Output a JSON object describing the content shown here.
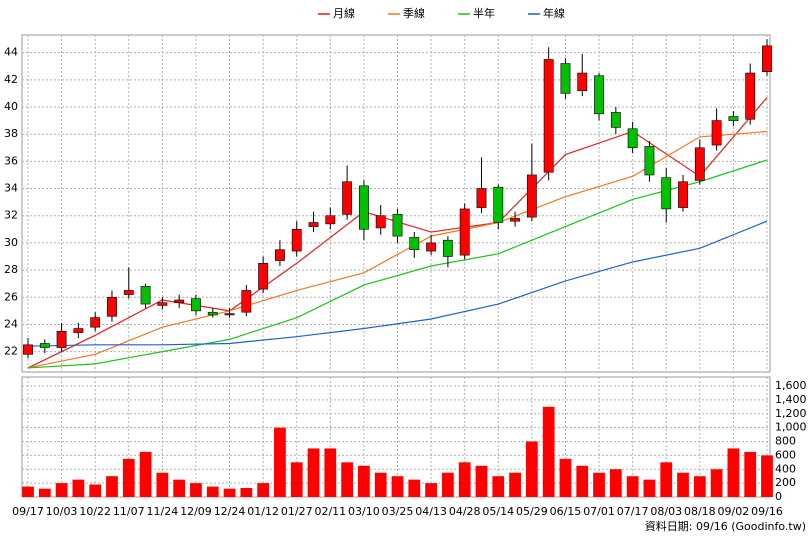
{
  "chart_data": [
    {
      "type": "candlestick",
      "categories": [
        "09/17",
        null,
        "10/03",
        null,
        "10/22",
        null,
        "11/07",
        null,
        "11/24",
        null,
        "12/09",
        null,
        "12/24",
        null,
        "01/12",
        null,
        "01/27",
        null,
        "02/11",
        null,
        "03/10",
        null,
        "03/25",
        null,
        "04/13",
        null,
        "04/28",
        null,
        "05/14",
        null,
        "05/29",
        null,
        "06/15",
        null,
        "07/01",
        null,
        "07/17",
        null,
        "08/03",
        null,
        "08/18",
        null,
        "09/02",
        null,
        "09/16"
      ],
      "open": [
        21.8,
        22.6,
        22.3,
        23.4,
        23.8,
        24.6,
        26.2,
        26.8,
        25.4,
        25.6,
        25.9,
        24.9,
        24.7,
        24.9,
        26.6,
        28.7,
        29.4,
        31.2,
        31.4,
        32.1,
        34.2,
        31.1,
        32.1,
        30.4,
        29.4,
        30.2,
        29.1,
        32.6,
        34.1,
        31.6,
        31.9,
        35.2,
        43.2,
        41.2,
        42.3,
        39.6,
        38.4,
        37.1,
        34.8,
        32.6,
        34.6,
        37.2,
        39.3,
        39.1,
        42.6
      ],
      "high": [
        23.0,
        22.9,
        24.1,
        24.1,
        24.9,
        26.5,
        28.2,
        27.0,
        26.0,
        26.2,
        26.2,
        25.2,
        25.2,
        26.9,
        29.0,
        30.2,
        31.6,
        32.3,
        32.6,
        35.7,
        34.6,
        32.8,
        32.5,
        30.8,
        30.6,
        30.5,
        32.9,
        36.3,
        34.3,
        32.3,
        37.3,
        44.4,
        43.6,
        43.9,
        42.5,
        40.0,
        38.9,
        37.5,
        35.5,
        35.0,
        37.6,
        39.9,
        39.7,
        43.2,
        45.0
      ],
      "low": [
        21.5,
        21.9,
        22.0,
        23.0,
        23.5,
        24.2,
        25.9,
        25.2,
        25.1,
        25.2,
        24.7,
        24.5,
        24.5,
        24.6,
        26.3,
        28.3,
        29.0,
        30.8,
        31.0,
        31.7,
        30.2,
        30.6,
        30.0,
        28.9,
        29.1,
        28.2,
        28.8,
        32.2,
        31.0,
        31.2,
        31.6,
        34.6,
        40.6,
        40.8,
        39.0,
        38.0,
        36.6,
        34.5,
        31.5,
        32.3,
        34.3,
        36.8,
        38.6,
        38.7,
        42.3
      ],
      "close": [
        22.5,
        22.3,
        23.5,
        23.7,
        24.5,
        26.0,
        26.5,
        25.5,
        25.6,
        25.8,
        25.0,
        24.7,
        24.8,
        26.5,
        28.5,
        29.5,
        31.0,
        31.5,
        32.0,
        34.5,
        31.0,
        32.0,
        30.5,
        29.5,
        30.0,
        29.0,
        32.5,
        34.0,
        31.5,
        31.8,
        35.0,
        43.5,
        41.0,
        42.5,
        39.5,
        38.5,
        37.0,
        35.0,
        32.5,
        34.5,
        37.0,
        39.0,
        39.0,
        42.5,
        44.5
      ],
      "up_color": "#ff0000",
      "down_color": "#00c000",
      "series": [
        {
          "name": "月線",
          "color": "#e02020",
          "x": [
            0,
            4,
            8,
            12,
            16,
            20,
            24,
            28,
            32,
            36,
            40,
            44
          ],
          "values": [
            20.8,
            23.2,
            25.8,
            25.0,
            28.5,
            32.3,
            30.8,
            31.5,
            36.5,
            38.2,
            34.9,
            40.7
          ]
        },
        {
          "name": "季線",
          "color": "#f07820",
          "x": [
            0,
            4,
            8,
            12,
            16,
            20,
            24,
            28,
            32,
            36,
            40,
            44
          ],
          "values": [
            20.8,
            21.8,
            23.8,
            25.0,
            26.5,
            27.8,
            30.5,
            31.5,
            33.4,
            34.9,
            37.8,
            38.2
          ]
        },
        {
          "name": "半年",
          "color": "#20c020",
          "x": [
            0,
            4,
            8,
            12,
            16,
            20,
            24,
            28,
            32,
            36,
            40,
            44
          ],
          "values": [
            20.8,
            21.1,
            22.0,
            22.9,
            24.5,
            26.9,
            28.3,
            29.2,
            31.2,
            33.2,
            34.5,
            36.1
          ]
        },
        {
          "name": "年線",
          "color": "#2060d0",
          "x": [
            0,
            4,
            8,
            12,
            16,
            20,
            24,
            28,
            32,
            36,
            40,
            44
          ],
          "values": [
            22.4,
            22.5,
            22.5,
            22.6,
            23.1,
            23.7,
            24.4,
            25.5,
            27.2,
            28.6,
            29.6,
            31.6
          ]
        }
      ],
      "ylim": [
        20.5,
        45.3
      ],
      "yticks": [
        22,
        24,
        26,
        28,
        30,
        32,
        34,
        36,
        38,
        40,
        42,
        44
      ],
      "grid": true
    },
    {
      "type": "bar",
      "color": "#ff0000",
      "values": [
        150,
        120,
        200,
        250,
        180,
        300,
        550,
        650,
        350,
        250,
        200,
        150,
        120,
        130,
        200,
        1000,
        500,
        700,
        700,
        500,
        450,
        350,
        300,
        250,
        200,
        350,
        500,
        450,
        300,
        350,
        800,
        1300,
        550,
        450,
        350,
        400,
        300,
        250,
        500,
        350,
        300,
        400,
        700,
        650,
        600
      ],
      "ylim": [
        0,
        1730
      ],
      "yticks": [
        0,
        200,
        400,
        600,
        800,
        {
          "value": 1000,
          "label": "1,000"
        },
        {
          "value": 1200,
          "label": "1,200"
        },
        {
          "value": 1400,
          "label": "1,400"
        },
        {
          "value": 1600,
          "label": "1,600"
        }
      ],
      "grid": true,
      "footer": "資料日期: 09/16 (Goodinfo.tw)"
    }
  ]
}
